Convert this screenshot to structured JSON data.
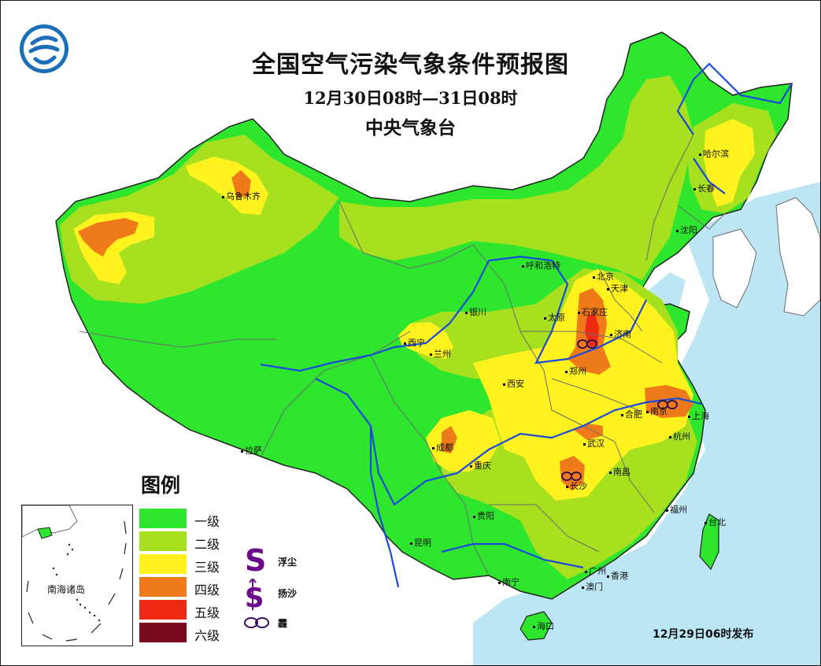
{
  "title": "全国空气污染气象条件预报图",
  "period": "12月30日08时—31日08时",
  "issuer": "中央气象台",
  "issued": "12月29日06时发布",
  "legend": {
    "title": "图例",
    "levels": [
      {
        "label": "一级",
        "color": "#2ee62e"
      },
      {
        "label": "二级",
        "color": "#a6e01e"
      },
      {
        "label": "三级",
        "color": "#fff21e"
      },
      {
        "label": "四级",
        "color": "#ee7a1a"
      },
      {
        "label": "五级",
        "color": "#ee2a14"
      },
      {
        "label": "六级",
        "color": "#7a0a1e"
      }
    ],
    "phenomena": [
      {
        "symbol": "S",
        "label": "浮尘",
        "icon": "floating-dust-icon"
      },
      {
        "symbol": "S",
        "label": "扬沙",
        "icon": "blowing-sand-icon"
      },
      {
        "symbol": "∞",
        "label": "霾",
        "icon": "haze-icon"
      }
    ]
  },
  "inset_label": "南海诸岛",
  "cities": [
    {
      "name": "乌鲁木齐"
    },
    {
      "name": "哈尔滨"
    },
    {
      "name": "长春"
    },
    {
      "name": "沈阳"
    },
    {
      "name": "呼和浩特"
    },
    {
      "name": "北京"
    },
    {
      "name": "天津"
    },
    {
      "name": "银川"
    },
    {
      "name": "太原"
    },
    {
      "name": "石家庄"
    },
    {
      "name": "济南"
    },
    {
      "name": "西宁"
    },
    {
      "name": "兰州"
    },
    {
      "name": "郑州"
    },
    {
      "name": "西安"
    },
    {
      "name": "合肥"
    },
    {
      "name": "南京"
    },
    {
      "name": "上海"
    },
    {
      "name": "武汉"
    },
    {
      "name": "杭州"
    },
    {
      "name": "成都"
    },
    {
      "name": "重庆"
    },
    {
      "name": "拉萨"
    },
    {
      "name": "长沙"
    },
    {
      "name": "南昌"
    },
    {
      "name": "福州"
    },
    {
      "name": "台北"
    },
    {
      "name": "贵阳"
    },
    {
      "name": "昆明"
    },
    {
      "name": "广州"
    },
    {
      "name": "南宁"
    },
    {
      "name": "香港"
    },
    {
      "name": "澳门"
    },
    {
      "name": "海口"
    }
  ],
  "colors": {
    "sea": "#bde6f5",
    "river": "#1a4ad8",
    "border": "#6b6b6b",
    "outline": "#222222"
  }
}
